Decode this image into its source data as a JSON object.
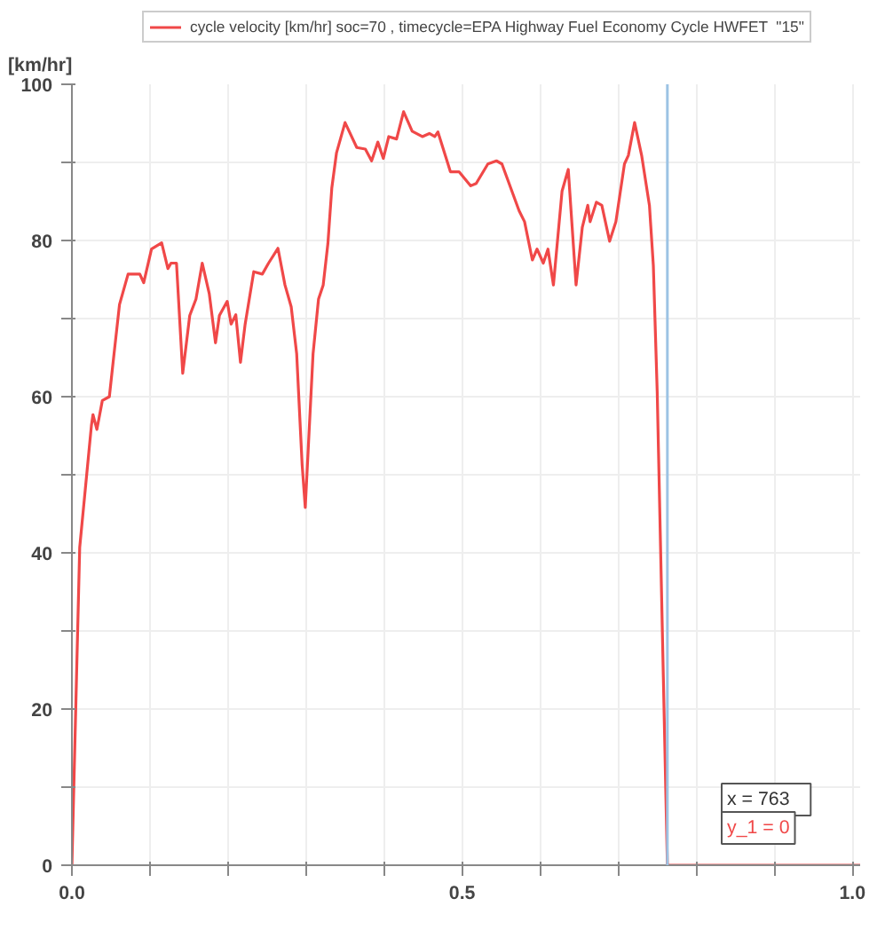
{
  "chart_data": {
    "type": "line",
    "ylabel": "[km/hr]",
    "x": [
      0,
      0.01,
      0.025,
      0.027,
      0.032,
      0.039,
      0.048,
      0.054,
      0.061,
      0.072,
      0.087,
      0.092,
      0.102,
      0.115,
      0.123,
      0.127,
      0.134,
      0.142,
      0.151,
      0.159,
      0.167,
      0.176,
      0.184,
      0.189,
      0.199,
      0.204,
      0.21,
      0.216,
      0.222,
      0.233,
      0.244,
      0.252,
      0.264,
      0.273,
      0.281,
      0.288,
      0.295,
      0.299,
      0.309,
      0.316,
      0.322,
      0.328,
      0.333,
      0.339,
      0.35,
      0.365,
      0.376,
      0.384,
      0.392,
      0.399,
      0.406,
      0.416,
      0.425,
      0.436,
      0.449,
      0.458,
      0.465,
      0.469,
      0.485,
      0.496,
      0.511,
      0.518,
      0.533,
      0.544,
      0.551,
      0.573,
      0.58,
      0.59,
      0.596,
      0.604,
      0.61,
      0.617,
      0.628,
      0.636,
      0.646,
      0.654,
      0.661,
      0.664,
      0.672,
      0.679,
      0.689,
      0.697,
      0.708,
      0.713,
      0.721,
      0.73,
      0.74,
      0.745,
      0.75,
      0.763,
      1.01
    ],
    "series": [
      {
        "name": "cycle velocity [km/hr] soc=70 , timecycle=EPA Highway Fuel Economy Cycle HWFET  \"15\"",
        "color": "#f04848",
        "values": [
          0,
          40.7,
          56.3,
          57.7,
          55.8,
          59.5,
          60,
          65.5,
          71.8,
          75.7,
          75.7,
          74.6,
          78.9,
          79.7,
          76.4,
          77.1,
          77.1,
          63,
          70.4,
          72.5,
          77.1,
          73.2,
          66.9,
          70.4,
          72.2,
          69.3,
          70.5,
          64.4,
          69.3,
          76,
          75.7,
          77.1,
          79,
          74.3,
          71.5,
          65.5,
          51.3,
          45.8,
          65.5,
          72.5,
          74.3,
          79.6,
          86.7,
          91.2,
          95.1,
          91.9,
          91.7,
          90.2,
          92.6,
          90.5,
          93.3,
          93,
          96.5,
          94,
          93.3,
          93.7,
          93.3,
          93.9,
          88.8,
          88.8,
          87,
          87.3,
          89.8,
          90.2,
          89.8,
          83.8,
          82.4,
          77.5,
          78.9,
          77.1,
          78.9,
          74.3,
          86.3,
          89.1,
          74.3,
          81.7,
          84.5,
          82.4,
          84.9,
          84.5,
          79.9,
          82.4,
          89.8,
          90.9,
          95.1,
          90.9,
          84.5,
          76.8,
          60.5,
          0,
          0
        ]
      }
    ],
    "xlim": [
      0,
      1.01
    ],
    "ylim": [
      0,
      100
    ],
    "xticks": [
      {
        "value": 0,
        "label": "0.0"
      },
      {
        "value": 0.1,
        "label": null
      },
      {
        "value": 0.2,
        "label": null
      },
      {
        "value": 0.3,
        "label": null
      },
      {
        "value": 0.4,
        "label": null
      },
      {
        "value": 0.5,
        "label": "0.5"
      },
      {
        "value": 0.6,
        "label": null
      },
      {
        "value": 0.7,
        "label": null
      },
      {
        "value": 0.8,
        "label": null
      },
      {
        "value": 0.9,
        "label": null
      },
      {
        "value": 1.0,
        "label": "1.0"
      }
    ],
    "yticks": [
      0,
      {
        "value": 10,
        "label": null
      },
      20,
      {
        "value": 30,
        "label": null
      },
      40,
      {
        "value": 50,
        "label": null
      },
      60,
      {
        "value": 70,
        "label": null
      },
      80,
      {
        "value": 90,
        "label": null
      },
      100
    ],
    "ref_lines": [
      {
        "axis": "x",
        "value": 0.763,
        "label": null,
        "color": "#9cc3e4"
      }
    ],
    "annotations": [
      "x    = 763",
      "y_1 = 0"
    ],
    "grid": true,
    "legend": "top",
    "marker": "none",
    "line_style": "solid"
  }
}
